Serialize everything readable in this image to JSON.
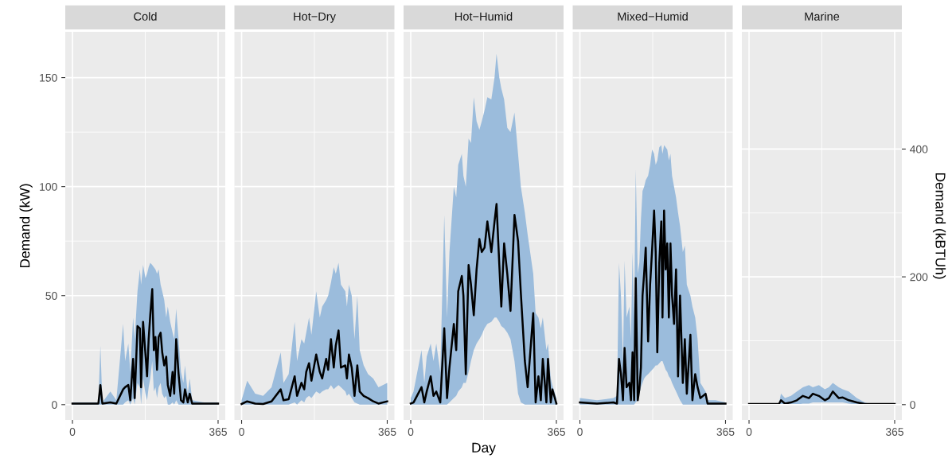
{
  "chart_data": [
    {
      "type": "line",
      "title": "Cold",
      "ylabel": "Demand (kW)",
      "xlim": [
        -18,
        383
      ],
      "ylim": [
        -7,
        171
      ],
      "xticks": [
        0,
        365
      ],
      "yticks": [
        0,
        50,
        100,
        150
      ],
      "grid": true,
      "x": [
        0,
        40,
        65,
        70,
        75,
        95,
        110,
        127,
        132,
        140,
        145,
        152,
        156,
        163,
        169,
        172,
        177,
        183,
        187,
        191,
        195,
        200,
        204,
        208,
        212,
        216,
        221,
        225,
        230,
        235,
        239,
        245,
        251,
        255,
        260,
        266,
        272,
        278,
        282,
        289,
        294,
        300,
        330,
        365
      ],
      "series": [
        {
          "color": "#000000",
          "values": [
            0.5,
            0.5,
            0.5,
            9,
            0.5,
            1,
            0.5,
            7,
            8,
            9,
            2,
            21,
            3,
            36,
            35,
            8,
            38,
            23,
            13,
            30,
            41,
            53,
            25,
            31,
            16,
            31,
            33,
            24,
            18,
            22,
            9,
            4,
            15,
            5,
            30,
            14,
            2,
            1,
            7,
            1,
            5,
            0.5,
            0.5,
            0.5
          ],
          "lower": [
            0,
            0,
            0,
            0,
            0,
            0,
            0,
            0,
            1,
            2,
            0,
            3,
            0,
            10,
            8,
            0,
            12,
            5,
            2,
            8,
            12,
            20,
            6,
            8,
            3,
            8,
            10,
            5,
            3,
            4,
            0,
            0,
            1,
            0,
            2,
            0,
            0,
            0,
            0,
            0,
            0,
            0,
            0,
            0
          ],
          "upper": [
            1,
            1,
            1,
            27,
            1,
            6,
            2,
            37,
            20,
            28,
            15,
            40,
            30,
            52,
            62,
            55,
            64,
            58,
            60,
            63,
            65,
            64,
            63,
            62,
            60,
            62,
            55,
            52,
            48,
            40,
            45,
            38,
            33,
            30,
            44,
            30,
            15,
            10,
            18,
            5,
            12,
            2,
            1,
            1
          ]
        }
      ]
    },
    {
      "type": "line",
      "title": "Hot−Dry",
      "xlim": [
        -18,
        383
      ],
      "ylim": [
        -7,
        171
      ],
      "xticks": [
        0,
        365
      ],
      "yticks": [
        0,
        50,
        100,
        150
      ],
      "grid": true,
      "tick_labels": "x",
      "x": [
        0,
        14,
        34,
        54,
        75,
        98,
        105,
        118,
        133,
        139,
        150,
        157,
        162,
        169,
        175,
        187,
        196,
        202,
        212,
        217,
        224,
        231,
        236,
        243,
        249,
        260,
        264,
        269,
        276,
        283,
        290,
        296,
        306,
        317,
        330,
        343,
        365
      ],
      "series": [
        {
          "color": "#000000",
          "values": [
            0.3,
            1.5,
            0.5,
            0.3,
            1.5,
            7,
            2,
            2.5,
            13,
            4,
            10,
            7,
            15,
            19,
            11,
            23,
            15,
            12,
            21,
            16,
            30,
            17,
            27,
            34,
            17,
            18,
            12,
            23,
            17,
            4,
            18,
            6,
            4,
            3,
            1.5,
            0.5,
            1.5
          ],
          "lower": [
            0,
            0,
            0,
            0,
            0,
            0,
            0,
            0,
            1,
            0,
            2,
            1,
            3,
            4,
            3,
            6,
            5,
            6,
            7,
            7,
            9,
            7,
            8,
            9,
            8,
            6,
            4,
            5,
            3,
            1,
            0.5,
            0,
            0,
            0,
            0,
            0,
            0
          ],
          "upper": [
            2,
            11,
            5,
            4,
            8,
            24,
            10,
            14,
            38,
            20,
            30,
            28,
            33,
            40,
            32,
            52,
            40,
            45,
            48,
            50,
            56,
            63,
            60,
            65,
            55,
            52,
            45,
            55,
            50,
            30,
            50,
            25,
            18,
            14,
            12,
            8,
            10
          ]
        }
      ]
    },
    {
      "type": "line",
      "title": "Hot−Humid",
      "xlabel": "Day",
      "xlim": [
        -18,
        383
      ],
      "ylim": [
        -7,
        171
      ],
      "xticks": [
        0,
        365
      ],
      "yticks": [
        0,
        50,
        100,
        150
      ],
      "grid": true,
      "tick_labels": "x",
      "x": [
        0,
        7,
        27,
        34,
        40,
        50,
        57,
        64,
        74,
        84,
        91,
        97,
        108,
        114,
        119,
        128,
        132,
        138,
        145,
        151,
        158,
        165,
        172,
        178,
        185,
        192,
        202,
        210,
        215,
        222,
        227,
        234,
        242,
        250,
        260,
        269,
        276,
        286,
        293,
        307,
        313,
        320,
        326,
        331,
        340,
        344,
        351,
        355,
        365
      ],
      "series": [
        {
          "color": "#000000",
          "values": [
            0.5,
            1,
            8,
            1,
            6,
            13,
            4,
            6,
            1,
            35,
            3,
            17,
            37,
            25,
            52,
            59,
            50,
            14,
            64,
            55,
            41,
            62,
            76,
            70,
            72,
            84,
            70,
            84,
            92,
            64,
            45,
            74,
            60,
            43,
            87,
            75,
            51,
            20,
            8,
            42,
            1,
            13,
            2,
            21,
            1,
            21,
            1,
            7,
            0.5
          ],
          "lower": [
            0,
            0,
            0,
            0,
            0,
            0,
            0,
            0,
            0,
            0,
            0,
            1,
            3,
            4,
            6,
            8,
            10,
            10,
            15,
            20,
            25,
            28,
            30,
            32,
            35,
            37,
            38,
            40,
            40,
            38,
            36,
            35,
            33,
            30,
            20,
            5,
            1,
            0,
            0,
            0,
            0,
            0,
            0,
            0,
            0,
            0,
            0,
            0,
            0
          ],
          "upper": [
            3,
            6,
            25,
            10,
            22,
            28,
            20,
            28,
            15,
            87,
            40,
            70,
            100,
            95,
            110,
            115,
            105,
            100,
            122,
            120,
            141,
            130,
            126,
            130,
            135,
            141,
            140,
            150,
            161,
            150,
            145,
            140,
            127,
            125,
            134,
            115,
            100,
            88,
            78,
            60,
            42,
            40,
            35,
            40,
            25,
            28,
            12,
            9,
            3
          ]
        }
      ]
    },
    {
      "type": "line",
      "title": "Mixed−Humid",
      "xlim": [
        -18,
        383
      ],
      "ylim": [
        -7,
        171
      ],
      "xticks": [
        0,
        365
      ],
      "yticks": [
        0,
        50,
        100,
        150
      ],
      "grid": true,
      "tick_labels": "x",
      "x": [
        0,
        43,
        84,
        93,
        98,
        103,
        108,
        112,
        117,
        124,
        128,
        132,
        136,
        140,
        145,
        149,
        153,
        157,
        161,
        165,
        171,
        176,
        181,
        186,
        190,
        194,
        199,
        204,
        207,
        211,
        215,
        219,
        223,
        227,
        231,
        236,
        241,
        246,
        251,
        258,
        263,
        268,
        277,
        282,
        289,
        295,
        302,
        315,
        320,
        340,
        365
      ],
      "series": [
        {
          "color": "#000000",
          "values": [
            1,
            0.5,
            1,
            0.5,
            21,
            14,
            2,
            26,
            8,
            10,
            2,
            24,
            2,
            58,
            2,
            7,
            17,
            50,
            60,
            72,
            29,
            55,
            71,
            89,
            70,
            24,
            65,
            84,
            40,
            89,
            62,
            74,
            40,
            74,
            50,
            37,
            62,
            13,
            50,
            10,
            30,
            5,
            32,
            2,
            14,
            8,
            3,
            5,
            0.5,
            0.5,
            0.5
          ],
          "lower": [
            0,
            0,
            0,
            0,
            0,
            0,
            0,
            0,
            0,
            0,
            0,
            0,
            0,
            1,
            2,
            5,
            8,
            10,
            12,
            13,
            14,
            15,
            16,
            17,
            18,
            18,
            19,
            20,
            20,
            18,
            16,
            15,
            13,
            12,
            10,
            8,
            6,
            4,
            2,
            0,
            0,
            0,
            0,
            0,
            0,
            0,
            0,
            0,
            0,
            0,
            0
          ],
          "upper": [
            3,
            2,
            3,
            4,
            65,
            50,
            20,
            66,
            40,
            45,
            30,
            70,
            40,
            108,
            60,
            65,
            85,
            98,
            100,
            103,
            105,
            110,
            117,
            115,
            110,
            112,
            118,
            119,
            115,
            119,
            118,
            117,
            112,
            115,
            105,
            100,
            95,
            88,
            82,
            70,
            73,
            55,
            50,
            45,
            40,
            30,
            10,
            6,
            2,
            2,
            1
          ]
        }
      ]
    },
    {
      "type": "line",
      "title": "Marine",
      "y2label": "Demand (kBTUh)",
      "xlim": [
        -18,
        383
      ],
      "ylim": [
        -7,
        171
      ],
      "xticks": [
        0,
        365
      ],
      "y2lim": [
        -23.9,
        583.5
      ],
      "y2ticks": [
        0,
        200,
        400
      ],
      "grid": true,
      "x": [
        0,
        40,
        75,
        80,
        90,
        105,
        120,
        135,
        150,
        160,
        175,
        190,
        200,
        210,
        225,
        235,
        250,
        270,
        290,
        300,
        365
      ],
      "series": [
        {
          "color": "#000000",
          "values": [
            0.3,
            0.3,
            0.3,
            2,
            0.5,
            1,
            2,
            4,
            3,
            5,
            4,
            2,
            3,
            6,
            3,
            3.3,
            2,
            1,
            0.3,
            0.3,
            0.3
          ],
          "lower": [
            0,
            0,
            0,
            0,
            0,
            0,
            0,
            0.5,
            0.5,
            1,
            1,
            1,
            1,
            1,
            1,
            1,
            0.5,
            0,
            0,
            0,
            0
          ],
          "upper": [
            0.5,
            0.5,
            0.5,
            5,
            3,
            4,
            6,
            8,
            9,
            8,
            9,
            7,
            8,
            10,
            8,
            7,
            6,
            3,
            1,
            0.5,
            0.5
          ]
        }
      ]
    }
  ]
}
